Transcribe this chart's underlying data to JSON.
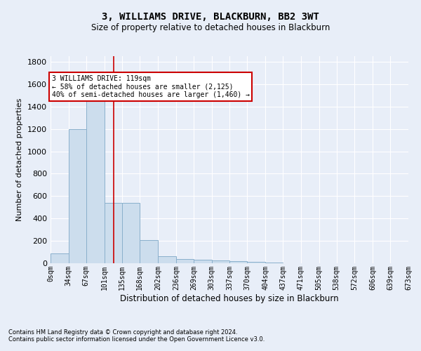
{
  "title": "3, WILLIAMS DRIVE, BLACKBURN, BB2 3WT",
  "subtitle": "Size of property relative to detached houses in Blackburn",
  "xlabel": "Distribution of detached houses by size in Blackburn",
  "ylabel": "Number of detached properties",
  "bar_color": "#ccdded",
  "bar_edge_color": "#8ab0cc",
  "bins": [
    0,
    34,
    67,
    101,
    135,
    168,
    202,
    236,
    269,
    303,
    337,
    370,
    404,
    437,
    471,
    505,
    538,
    572,
    606,
    639,
    673
  ],
  "bar_heights": [
    85,
    1200,
    1475,
    540,
    540,
    205,
    65,
    40,
    30,
    25,
    20,
    10,
    5,
    3,
    2,
    2,
    1,
    1,
    0,
    0
  ],
  "tick_labels": [
    "0sqm",
    "34sqm",
    "67sqm",
    "101sqm",
    "135sqm",
    "168sqm",
    "202sqm",
    "236sqm",
    "269sqm",
    "303sqm",
    "337sqm",
    "370sqm",
    "404sqm",
    "437sqm",
    "471sqm",
    "505sqm",
    "538sqm",
    "572sqm",
    "606sqm",
    "639sqm",
    "673sqm"
  ],
  "vline_x": 119,
  "vline_color": "#cc0000",
  "ylim": [
    0,
    1850
  ],
  "yticks": [
    0,
    200,
    400,
    600,
    800,
    1000,
    1200,
    1400,
    1600,
    1800
  ],
  "annotation_line1": "3 WILLIAMS DRIVE: 119sqm",
  "annotation_line2": "← 58% of detached houses are smaller (2,125)",
  "annotation_line3": "40% of semi-detached houses are larger (1,460) →",
  "annotation_box_color": "#ffffff",
  "annotation_box_edge": "#cc0000",
  "footnote1": "Contains HM Land Registry data © Crown copyright and database right 2024.",
  "footnote2": "Contains public sector information licensed under the Open Government Licence v3.0.",
  "background_color": "#e8eef8",
  "grid_color": "#ffffff"
}
